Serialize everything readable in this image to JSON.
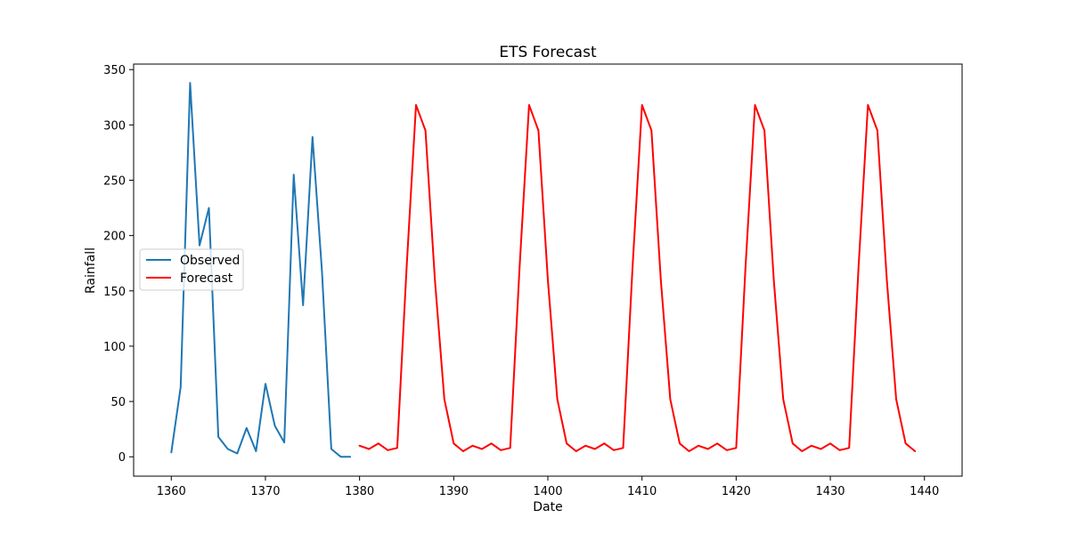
{
  "chart_data": {
    "type": "line",
    "title": "ETS Forecast",
    "xlabel": "Date",
    "ylabel": "Rainfall",
    "xlim": [
      1356,
      1444
    ],
    "ylim": [
      -17.5,
      355
    ],
    "xticks": [
      1360,
      1370,
      1380,
      1390,
      1400,
      1410,
      1420,
      1430,
      1440
    ],
    "yticks": [
      0,
      50,
      100,
      150,
      200,
      250,
      300,
      350
    ],
    "grid": false,
    "legend": {
      "position": "center-left",
      "entries": [
        "Observed",
        "Forecast"
      ]
    },
    "series": [
      {
        "name": "Observed",
        "color": "#1f77b4",
        "x": [
          1360,
          1361,
          1362,
          1363,
          1364,
          1365,
          1366,
          1367,
          1368,
          1369,
          1370,
          1371,
          1372,
          1373,
          1374,
          1375,
          1376,
          1377,
          1378,
          1379
        ],
        "values": [
          4,
          63,
          338,
          191,
          225,
          18,
          7,
          3,
          26,
          5,
          66,
          28,
          13,
          255,
          137,
          289,
          168,
          7,
          0,
          0
        ]
      },
      {
        "name": "Forecast",
        "color": "#ff0000",
        "x": [
          1380,
          1381,
          1382,
          1383,
          1384,
          1385,
          1386,
          1387,
          1388,
          1389,
          1390,
          1391,
          1392,
          1393,
          1394,
          1395,
          1396,
          1397,
          1398,
          1399,
          1400,
          1401,
          1402,
          1403,
          1404,
          1405,
          1406,
          1407,
          1408,
          1409,
          1410,
          1411,
          1412,
          1413,
          1414,
          1415,
          1416,
          1417,
          1418,
          1419,
          1420,
          1421,
          1422,
          1423,
          1424,
          1425,
          1426,
          1427,
          1428,
          1429,
          1430,
          1431,
          1432,
          1433,
          1434,
          1435,
          1436,
          1437,
          1438,
          1439
        ],
        "values": [
          10,
          7,
          12,
          6,
          8,
          172,
          318,
          295,
          160,
          52,
          12,
          5,
          10,
          7,
          12,
          6,
          8,
          172,
          318,
          295,
          160,
          52,
          12,
          5,
          10,
          7,
          12,
          6,
          8,
          172,
          318,
          295,
          160,
          52,
          12,
          5,
          10,
          7,
          12,
          6,
          8,
          172,
          318,
          295,
          160,
          52,
          12,
          5,
          10,
          7,
          12,
          6,
          8,
          172,
          318,
          295,
          160,
          52,
          12,
          5
        ]
      }
    ]
  }
}
